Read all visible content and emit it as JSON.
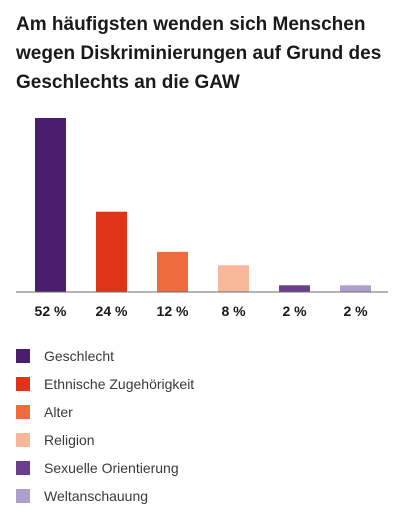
{
  "chart_data": {
    "type": "bar",
    "title": "Am häufigsten wenden sich Menschen wegen Diskriminierungen auf Grund des Geschlechts an die GAW",
    "categories": [
      "Geschlecht",
      "Ethnische Zugehörigkeit",
      "Alter",
      "Religion",
      "Sexuelle Orientierung",
      "Weltanschauung"
    ],
    "values": [
      52,
      24,
      12,
      8,
      2,
      2
    ],
    "value_labels": [
      "52 %",
      "24 %",
      "12 %",
      "8 %",
      "2 %",
      "2 %"
    ],
    "colors": [
      "#4a1d6e",
      "#e03418",
      "#ee6b3c",
      "#f7b89a",
      "#6a3d8f",
      "#b09fcb"
    ],
    "ylim": [
      0,
      52
    ],
    "grid": false,
    "legend": "bottom-left"
  }
}
